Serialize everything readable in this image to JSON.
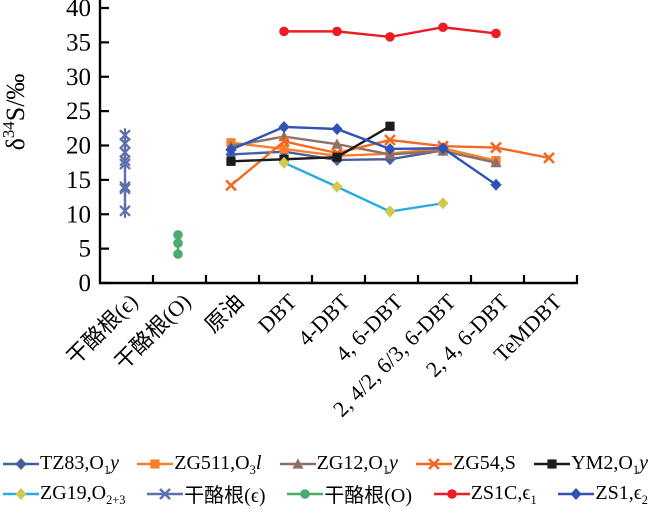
{
  "chart_data": {
    "type": "line",
    "title": "",
    "ylabel": {
      "prefix": "δ",
      "sup": "34",
      "rest": "S/‰"
    },
    "ylim": [
      0,
      40
    ],
    "yticks": [
      0,
      5,
      10,
      15,
      20,
      25,
      30,
      35,
      40
    ],
    "grid": false,
    "legend_position": "bottom",
    "categories": [
      "干酪根(ϵ)",
      "干酪根(O)",
      "原油",
      "DBT",
      "4-DBT",
      "4, 6-DBT",
      "2, 4/2, 6/3, 6-DBT",
      "2, 4, 6-DBT",
      "TeMDBT"
    ],
    "axis_color": "#000000",
    "series": [
      {
        "name": "TZ83,O1y",
        "label": [
          {
            "t": "TZ83,O"
          },
          {
            "t": "1",
            "sub": true
          },
          {
            "t": "y",
            "i": true
          }
        ],
        "color": "#46609F",
        "marker": "diamond",
        "points": [
          [
            2,
            18.7
          ],
          [
            3,
            19.1
          ],
          [
            4,
            17.9
          ],
          [
            5,
            18.0
          ],
          [
            6,
            19.3
          ]
        ]
      },
      {
        "name": "ZG511,O3l",
        "label": [
          {
            "t": "ZG511,O"
          },
          {
            "t": "3",
            "sub": true
          },
          {
            "t": "l",
            "i": true
          }
        ],
        "color": "#F5822A",
        "marker": "square",
        "points": [
          [
            2,
            20.4
          ],
          [
            3,
            19.5
          ],
          [
            4,
            18.5
          ],
          [
            5,
            18.8
          ],
          [
            6,
            19.6
          ],
          [
            7,
            17.8
          ]
        ]
      },
      {
        "name": "ZG12,O1y",
        "label": [
          {
            "t": "ZG12,O"
          },
          {
            "t": "1",
            "sub": true
          },
          {
            "t": "y",
            "i": true
          }
        ],
        "color": "#8E7067",
        "marker": "triangle",
        "points": [
          [
            2,
            19.9
          ],
          [
            3,
            21.3
          ],
          [
            4,
            20.2
          ],
          [
            5,
            18.7
          ],
          [
            6,
            19.2
          ],
          [
            7,
            17.5
          ]
        ]
      },
      {
        "name": "ZG54,S",
        "label": [
          {
            "t": "ZG54,S"
          }
        ],
        "color": "#F26A21",
        "marker": "x",
        "points": [
          [
            2,
            14.2
          ],
          [
            3,
            20.6
          ],
          [
            4,
            18.9
          ],
          [
            5,
            20.8
          ],
          [
            6,
            19.9
          ],
          [
            7,
            19.7
          ],
          [
            8,
            18.2
          ]
        ]
      },
      {
        "name": "YM2,O1y",
        "label": [
          {
            "t": "YM2,O"
          },
          {
            "t": "1",
            "sub": true
          },
          {
            "t": "y",
            "i": true
          }
        ],
        "color": "#1C1C1C",
        "marker": "square",
        "points": [
          [
            2,
            17.7
          ],
          [
            3,
            18.0
          ],
          [
            4,
            18.3
          ],
          [
            5,
            22.8
          ]
        ]
      },
      {
        "name": "ZG19,O2+3",
        "label": [
          {
            "t": "ZG19,O"
          },
          {
            "t": "2+3",
            "sub": true
          }
        ],
        "color": "#D0C94F",
        "line_color": "#29ABE2",
        "marker": "diamond",
        "points": [
          [
            3,
            17.5
          ],
          [
            4,
            14.0
          ],
          [
            5,
            10.4
          ],
          [
            6,
            11.6
          ]
        ]
      },
      {
        "name": "干酪根(ϵ)",
        "label": [
          {
            "t": "干酪根(ϵ)"
          }
        ],
        "color": "#5D6FAC",
        "marker": "xline",
        "points": [
          [
            0,
            21.5
          ],
          [
            0,
            20.3
          ],
          [
            0,
            19.0
          ],
          [
            0,
            17.8
          ],
          [
            0,
            17.3
          ],
          [
            0,
            14.0
          ],
          [
            0,
            13.7
          ],
          [
            0,
            10.5
          ]
        ]
      },
      {
        "name": "干酪根(O)",
        "label": [
          {
            "t": "干酪根(O)"
          }
        ],
        "color": "#4BAA6C",
        "marker": "circle",
        "points": [
          [
            1,
            7.0
          ],
          [
            1,
            5.8
          ],
          [
            1,
            4.2
          ]
        ]
      },
      {
        "name": "ZS1C,ϵ1",
        "label": [
          {
            "t": "ZS1C,ϵ"
          },
          {
            "t": "1",
            "sub": true
          }
        ],
        "color": "#EC1B24",
        "marker": "circle",
        "points": [
          [
            3,
            36.6
          ],
          [
            4,
            36.6
          ],
          [
            5,
            35.8
          ],
          [
            6,
            37.2
          ],
          [
            7,
            36.3
          ]
        ]
      },
      {
        "name": "ZS1,ϵ2",
        "label": [
          {
            "t": "ZS1,ϵ"
          },
          {
            "t": "2",
            "sub": true
          }
        ],
        "color": "#3052B5",
        "marker": "diamond",
        "points": [
          [
            2,
            19.4
          ],
          [
            3,
            22.7
          ],
          [
            4,
            22.4
          ],
          [
            5,
            19.5
          ],
          [
            6,
            19.6
          ],
          [
            7,
            14.3
          ]
        ]
      }
    ],
    "legend_rows": [
      [
        0,
        1,
        2,
        3,
        4
      ],
      [
        5,
        6,
        7,
        8,
        9
      ]
    ]
  }
}
